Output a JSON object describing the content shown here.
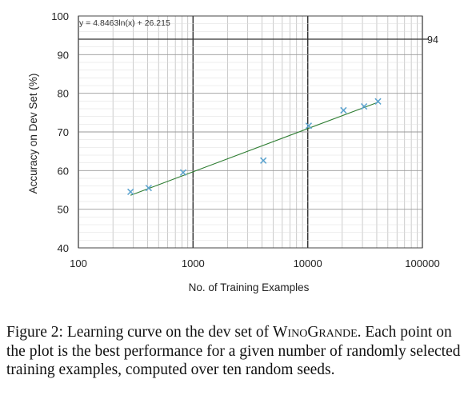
{
  "chart_data": {
    "type": "scatter",
    "x_scale": "log",
    "xlabel": "No. of Training Examples",
    "ylabel": "Accuracy on Dev Set (%)",
    "xlim": [
      100,
      100000
    ],
    "ylim": [
      40,
      100
    ],
    "x_ticks": [
      "100",
      "1000",
      "10000",
      "100000"
    ],
    "y_ticks": [
      "40",
      "50",
      "60",
      "70",
      "80",
      "90",
      "100"
    ],
    "grid": true,
    "points": [
      {
        "x": 285,
        "y": 54.5
      },
      {
        "x": 410,
        "y": 55.5
      },
      {
        "x": 820,
        "y": 59.5
      },
      {
        "x": 4100,
        "y": 62.6
      },
      {
        "x": 10200,
        "y": 71.6
      },
      {
        "x": 20500,
        "y": 75.6
      },
      {
        "x": 31000,
        "y": 76.6
      },
      {
        "x": 41000,
        "y": 77.9
      }
    ],
    "trendline": {
      "equation": "y = 4.8463ln(x) + 26.215",
      "a": 4.8463,
      "b": 26.215,
      "x_range": [
        285,
        41000
      ]
    },
    "reference_line": {
      "y": 94,
      "label": "94"
    },
    "colors": {
      "points": "#5ba3cf",
      "trendline": "#2e7d32",
      "reference": "#333333",
      "grid": "#aaaaaa"
    }
  },
  "caption": {
    "prefix": "Figure 2: Learning curve on the dev set of ",
    "name_part1": "Wino",
    "name_part2": "Grande",
    "suffix": ". Each point on the plot is the best performance for a given number of randomly selected training examples, computed over ten random seeds."
  }
}
